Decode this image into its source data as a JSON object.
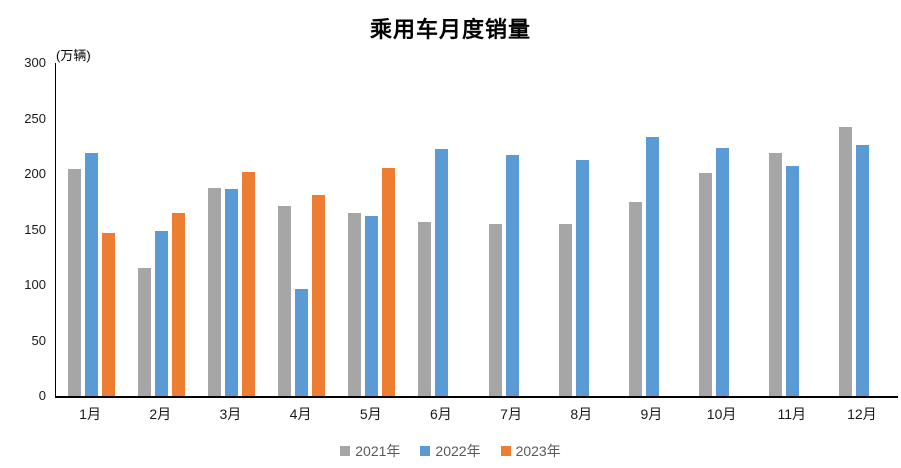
{
  "chart_data": {
    "type": "bar",
    "title": "乘用车月度销量",
    "unit_label": "(万辆)",
    "xlabel": "",
    "ylabel": "万辆",
    "ylim": [
      0,
      300
    ],
    "yticks": [
      0,
      50,
      100,
      150,
      200,
      250,
      300
    ],
    "grid": false,
    "legend_position": "bottom",
    "categories": [
      "1月",
      "2月",
      "3月",
      "4月",
      "5月",
      "6月",
      "7月",
      "8月",
      "9月",
      "10月",
      "11月",
      "12月"
    ],
    "series": [
      {
        "name": "2021年",
        "color": "#A6A6A6",
        "values": [
          204.5,
          115.6,
          187.4,
          170.8,
          164.6,
          156.9,
          155.1,
          155.2,
          175.1,
          200.7,
          219.2,
          242.2
        ]
      },
      {
        "name": "2022年",
        "color": "#5B9BD5",
        "values": [
          218.6,
          148.7,
          186.4,
          96.5,
          162.3,
          222.2,
          217.4,
          212.5,
          233.2,
          223.1,
          207.5,
          226.3
        ]
      },
      {
        "name": "2023年",
        "color": "#ED7D31",
        "values": [
          146.9,
          165.3,
          201.7,
          181.1,
          205.1,
          null,
          null,
          null,
          null,
          null,
          null,
          null
        ]
      }
    ]
  }
}
